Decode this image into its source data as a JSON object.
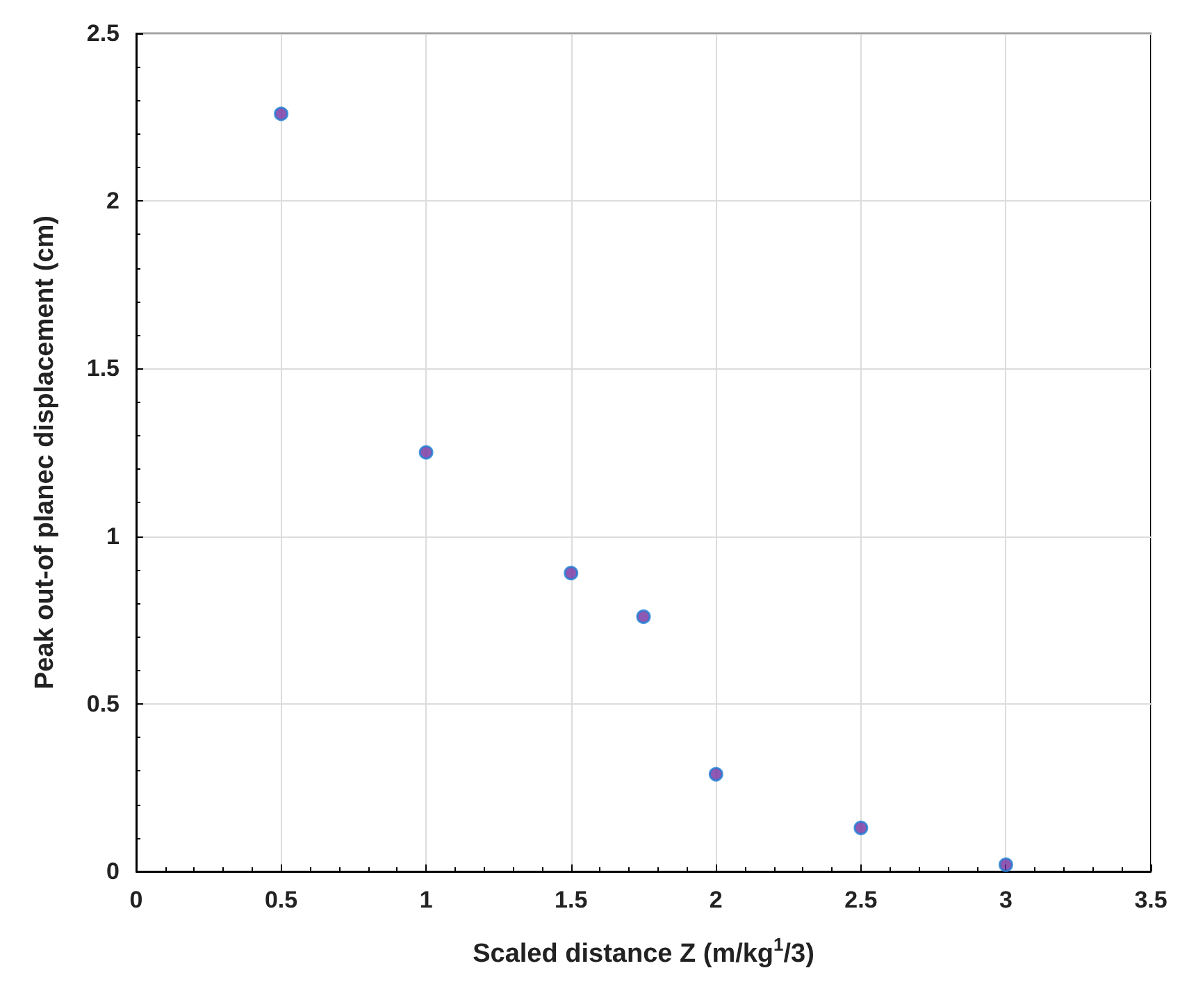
{
  "chart_data": {
    "type": "scatter",
    "xlabel": "Scaled distance Z (m/kg$^{1}$/3)",
    "ylabel": "Peak out-of planec displacement (cm)",
    "x": [
      0.5,
      1,
      1.5,
      1.75,
      2,
      2.5,
      3
    ],
    "values": [
      2.26,
      1.25,
      0.89,
      0.76,
      0.29,
      0.13,
      0.02
    ],
    "color": "#7030a0",
    "marker": "circle",
    "xlim": [
      0,
      3.5
    ],
    "xticks": [
      0,
      0.5,
      1,
      1.5,
      2,
      2.5,
      3,
      3.5
    ],
    "ylim": [
      0,
      2.5
    ],
    "yticks": [
      0,
      0.5,
      1,
      1.5,
      2,
      2.5
    ],
    "grid": true
  }
}
